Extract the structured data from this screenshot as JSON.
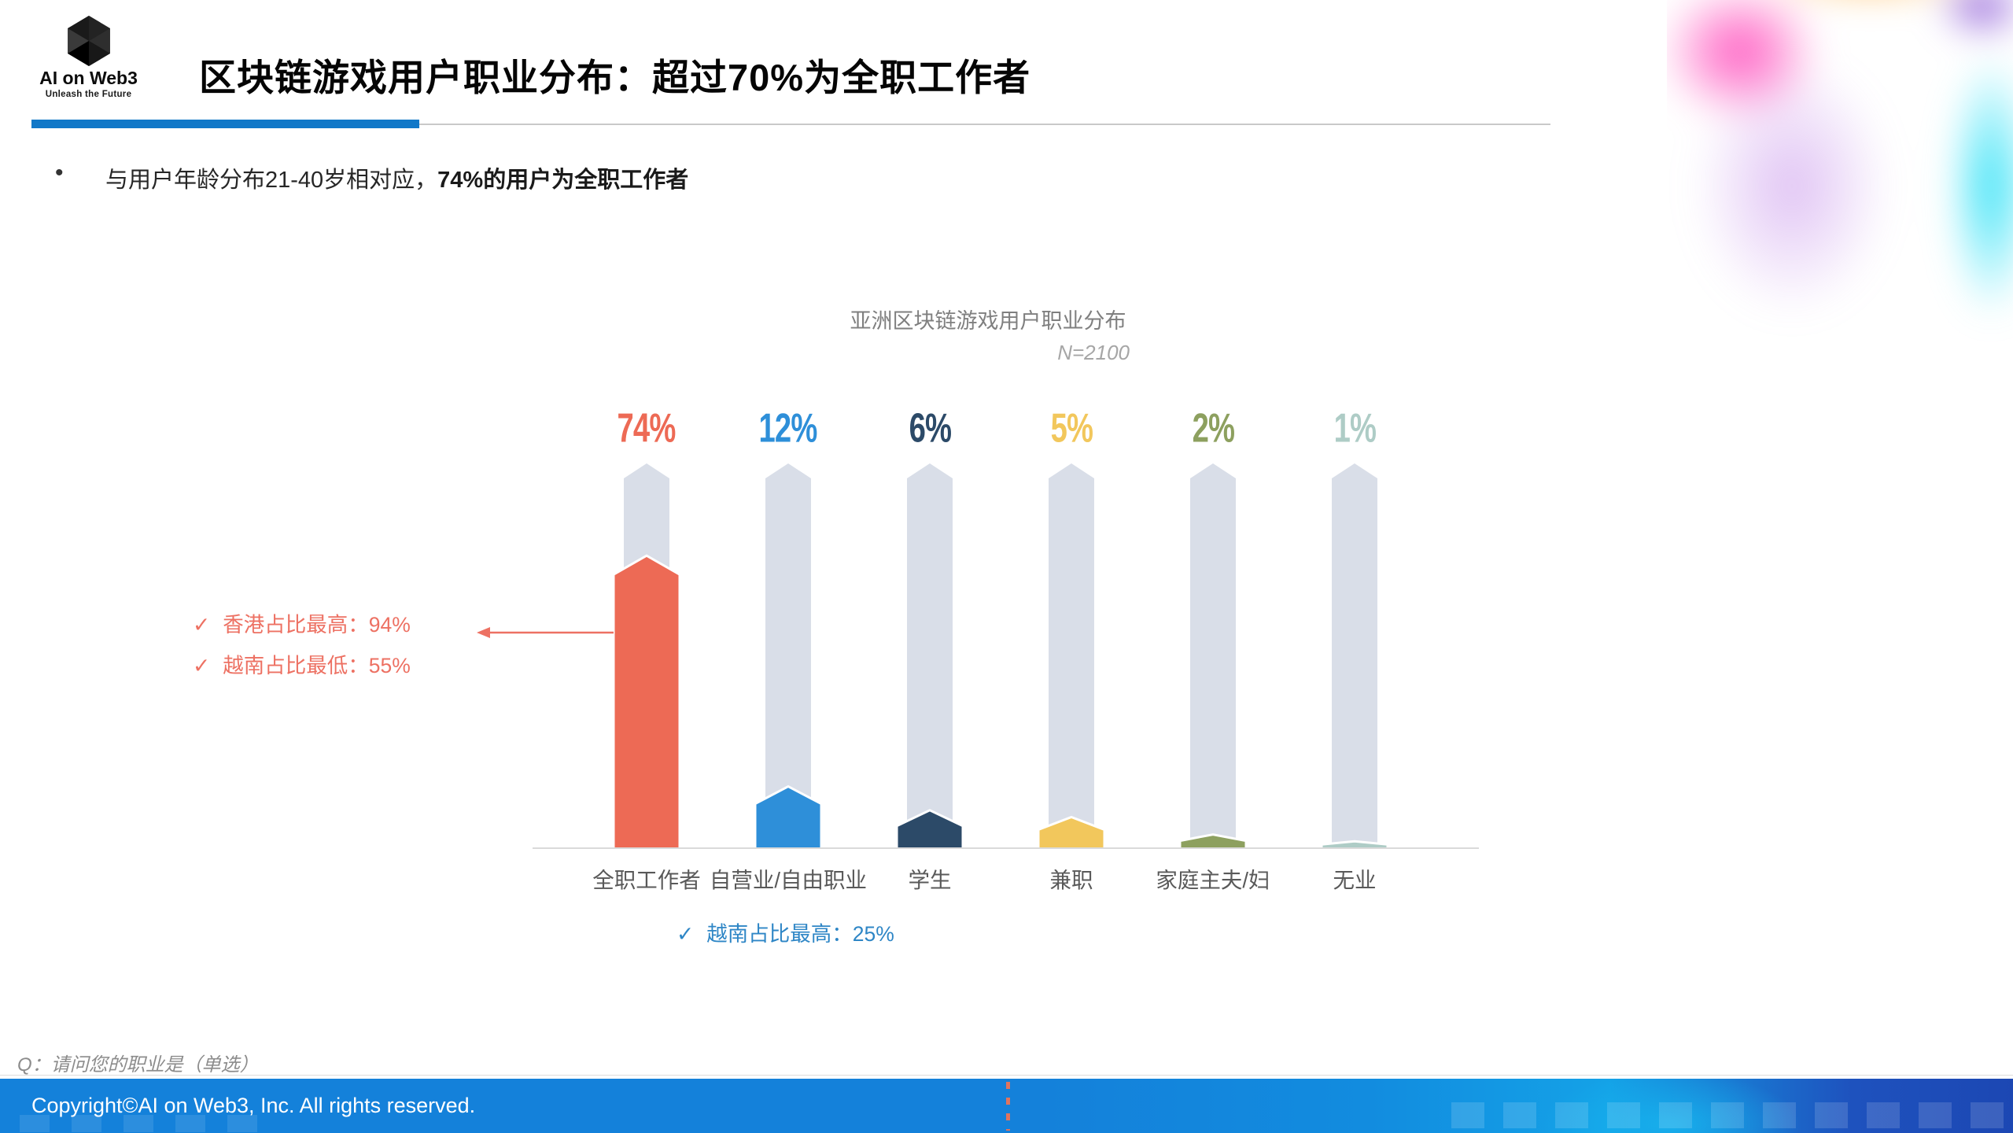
{
  "header": {
    "logo": {
      "brand": "AI on Web3",
      "tagline": "Unleash the Future",
      "icon": "cube-hexagon-icon"
    },
    "title": "区块链游戏用户职业分布：超过70%为全职工作者",
    "accent_color": "#1178C8"
  },
  "bullet": {
    "prefix": "与用户年龄分布21-40岁相对应，",
    "bold": "74%的用户为全职工作者"
  },
  "icons": {
    "check": "✓"
  },
  "chart_data": {
    "type": "bar",
    "title": "亚洲区块链游戏用户职业分布",
    "sample_note": "N=2100",
    "categories": [
      "全职工作者",
      "自营业/自由职业",
      "学生",
      "兼职",
      "家庭主夫/妇",
      "无业"
    ],
    "values": [
      74,
      12,
      6,
      5,
      2,
      1
    ],
    "value_labels": [
      "74%",
      "12%",
      "6%",
      "5%",
      "2%",
      "1%"
    ],
    "bar_colors": [
      "#ED6A55",
      "#2E8FD9",
      "#2C4A68",
      "#F2C75C",
      "#8DA05F",
      "#AECCC6"
    ],
    "track_color": "#D9DEE8",
    "ylim": [
      0,
      100
    ],
    "grid": false,
    "legend": "none",
    "annotations": [
      {
        "text": "香港占比最高：94%",
        "color": "#ED7163",
        "target": "全职工作者"
      },
      {
        "text": "越南占比最低：55%",
        "color": "#ED7163",
        "target": "全职工作者"
      },
      {
        "text": "越南占比最高：25%",
        "color": "#2E86C6",
        "target": "自营业/自由职业"
      }
    ]
  },
  "footnote": {
    "text": "Q：请问您的职业是（单选）"
  },
  "footer": {
    "copyright": "Copyright©AI on Web3, Inc. All rights reserved.",
    "bar_color": "#1481DA"
  }
}
